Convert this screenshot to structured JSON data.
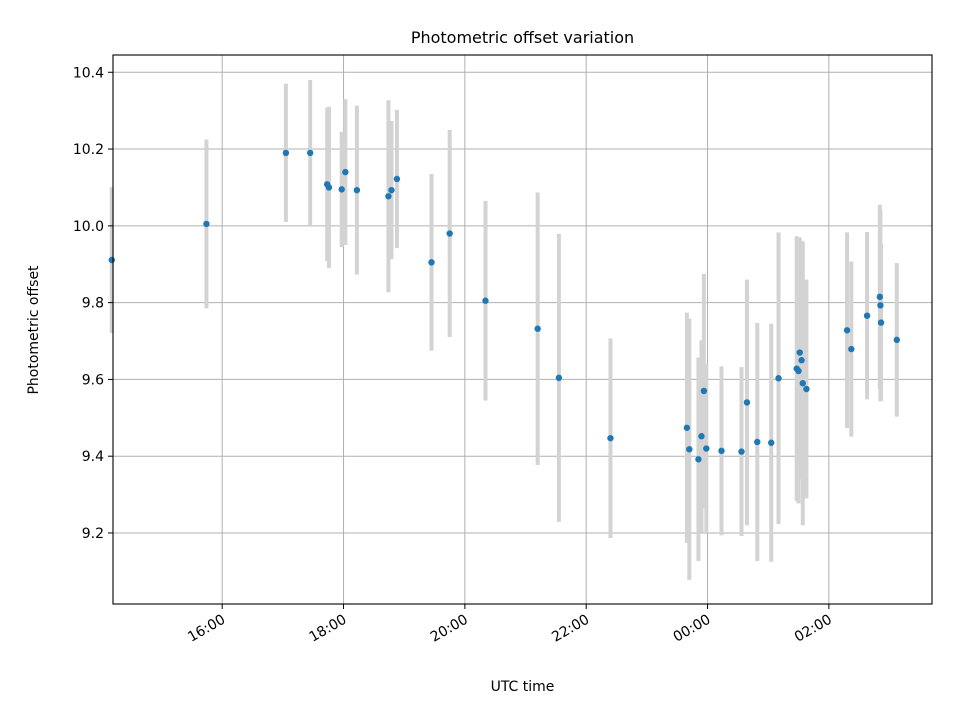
{
  "chart_data": {
    "type": "scatter",
    "title": "Photometric offset variation",
    "xlabel": "UTC time",
    "ylabel": "Photometric offset",
    "x_unit": "hours (UTC, relative to 00:00; negative = previous day)",
    "xlim": [
      -9.8,
      3.7
    ],
    "ylim": [
      9.015,
      10.445
    ],
    "x_ticks": [
      {
        "value": -8,
        "label": "16:00"
      },
      {
        "value": -6,
        "label": "18:00"
      },
      {
        "value": -4,
        "label": "20:00"
      },
      {
        "value": -2,
        "label": "22:00"
      },
      {
        "value": 0,
        "label": "00:00"
      },
      {
        "value": 2,
        "label": "02:00"
      }
    ],
    "y_ticks": [
      {
        "value": 9.2,
        "label": "9.2"
      },
      {
        "value": 9.4,
        "label": "9.4"
      },
      {
        "value": 9.6,
        "label": "9.6"
      },
      {
        "value": 9.8,
        "label": "9.8"
      },
      {
        "value": 10.0,
        "label": "10.0"
      },
      {
        "value": 10.2,
        "label": "10.2"
      },
      {
        "value": 10.4,
        "label": "10.4"
      }
    ],
    "grid": true,
    "marker_color": "#1f77b4",
    "errorbar_color": "#d3d3d3",
    "points": [
      {
        "x": -9.82,
        "y": 9.911,
        "err": 0.19
      },
      {
        "x": -8.26,
        "y": 10.005,
        "err": 0.22
      },
      {
        "x": -6.95,
        "y": 10.19,
        "err": 0.18
      },
      {
        "x": -6.55,
        "y": 10.19,
        "err": 0.19
      },
      {
        "x": -6.27,
        "y": 10.108,
        "err": 0.2
      },
      {
        "x": -6.24,
        "y": 10.1,
        "err": 0.21
      },
      {
        "x": -6.03,
        "y": 10.095,
        "err": 0.15
      },
      {
        "x": -5.97,
        "y": 10.14,
        "err": 0.19
      },
      {
        "x": -5.78,
        "y": 10.093,
        "err": 0.22
      },
      {
        "x": -5.26,
        "y": 10.077,
        "err": 0.25
      },
      {
        "x": -5.21,
        "y": 10.093,
        "err": 0.18
      },
      {
        "x": -5.12,
        "y": 10.122,
        "err": 0.18
      },
      {
        "x": -4.55,
        "y": 9.905,
        "err": 0.23
      },
      {
        "x": -4.25,
        "y": 9.98,
        "err": 0.27
      },
      {
        "x": -3.66,
        "y": 9.805,
        "err": 0.26
      },
      {
        "x": -2.8,
        "y": 9.732,
        "err": 0.355
      },
      {
        "x": -2.45,
        "y": 9.604,
        "err": 0.375
      },
      {
        "x": -1.6,
        "y": 9.447,
        "err": 0.26
      },
      {
        "x": -0.34,
        "y": 9.474,
        "err": 0.3
      },
      {
        "x": -0.3,
        "y": 9.418,
        "err": 0.34
      },
      {
        "x": -0.15,
        "y": 9.392,
        "err": 0.265
      },
      {
        "x": -0.1,
        "y": 9.452,
        "err": 0.25
      },
      {
        "x": -0.06,
        "y": 9.57,
        "err": 0.305
      },
      {
        "x": -0.02,
        "y": 9.42,
        "err": 0.22
      },
      {
        "x": 0.23,
        "y": 9.414,
        "err": 0.22
      },
      {
        "x": 0.56,
        "y": 9.412,
        "err": 0.22
      },
      {
        "x": 0.65,
        "y": 9.54,
        "err": 0.32
      },
      {
        "x": 0.82,
        "y": 9.437,
        "err": 0.31
      },
      {
        "x": 1.05,
        "y": 9.435,
        "err": 0.31
      },
      {
        "x": 1.17,
        "y": 9.603,
        "err": 0.38
      },
      {
        "x": 1.47,
        "y": 9.628,
        "err": 0.345
      },
      {
        "x": 1.5,
        "y": 9.622,
        "err": 0.345
      },
      {
        "x": 1.52,
        "y": 9.67,
        "err": 0.3
      },
      {
        "x": 1.55,
        "y": 9.65,
        "err": 0.31
      },
      {
        "x": 1.57,
        "y": 9.59,
        "err": 0.37
      },
      {
        "x": 1.63,
        "y": 9.575,
        "err": 0.285
      },
      {
        "x": 2.3,
        "y": 9.728,
        "err": 0.255
      },
      {
        "x": 2.37,
        "y": 9.679,
        "err": 0.228
      },
      {
        "x": 2.63,
        "y": 9.766,
        "err": 0.218
      },
      {
        "x": 2.84,
        "y": 9.815,
        "err": 0.24
      },
      {
        "x": 2.85,
        "y": 9.793,
        "err": 0.25
      },
      {
        "x": 2.86,
        "y": 9.748,
        "err": 0.205
      },
      {
        "x": 3.12,
        "y": 9.703,
        "err": 0.2
      }
    ]
  }
}
